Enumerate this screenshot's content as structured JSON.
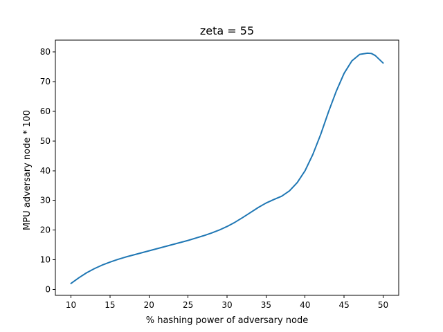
{
  "chart_data": {
    "type": "line",
    "title": "zeta = 55",
    "xlabel": "% hashing power of adversary node",
    "ylabel": "MPU adversary node * 100",
    "xlim": [
      8,
      52
    ],
    "ylim": [
      -2,
      84
    ],
    "xticks": [
      10,
      15,
      20,
      25,
      30,
      35,
      40,
      45,
      50
    ],
    "yticks": [
      0,
      10,
      20,
      30,
      40,
      50,
      60,
      70,
      80
    ],
    "grid": false,
    "series": [
      {
        "color": "#1f77b4",
        "x": [
          10,
          11,
          12,
          13,
          14,
          15,
          16,
          17,
          18,
          19,
          20,
          21,
          22,
          23,
          24,
          25,
          26,
          27,
          28,
          29,
          30,
          31,
          32,
          33,
          34,
          35,
          36,
          37,
          38,
          39,
          40,
          41,
          42,
          43,
          44,
          45,
          46,
          47,
          48,
          48.5,
          49,
          50
        ],
        "values": [
          2.0,
          3.9,
          5.6,
          7.0,
          8.2,
          9.2,
          10.1,
          10.9,
          11.6,
          12.3,
          13.0,
          13.7,
          14.4,
          15.1,
          15.8,
          16.5,
          17.3,
          18.1,
          19.0,
          20.0,
          21.2,
          22.6,
          24.2,
          25.9,
          27.6,
          29.1,
          30.3,
          31.4,
          33.2,
          36.0,
          40.0,
          45.5,
          52.2,
          59.8,
          66.8,
          72.8,
          77.0,
          79.2,
          79.6,
          79.5,
          78.8,
          76.3
        ]
      }
    ]
  }
}
